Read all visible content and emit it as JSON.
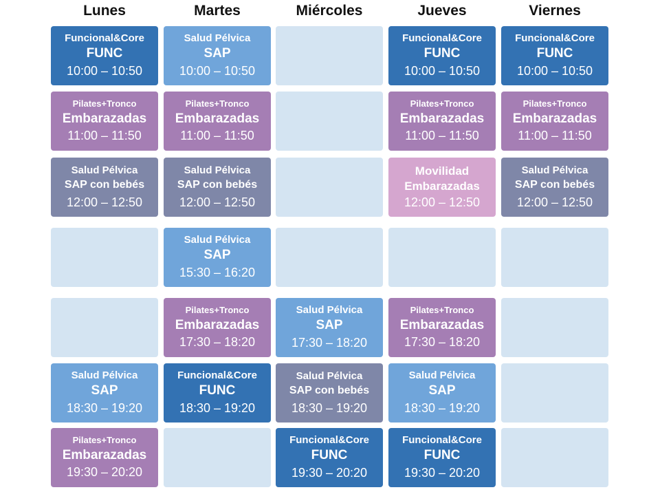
{
  "days": [
    "Lunes",
    "Martes",
    "Miércoles",
    "Jueves",
    "Viernes"
  ],
  "rows": [
    [
      {
        "cat": "Funcional&Core",
        "cls": "FUNC",
        "time": "10:00 – 10:50"
      },
      {
        "cat": "Salud Pélvica",
        "cls": "SAP",
        "time": "10:00 – 10:50"
      },
      null,
      {
        "cat": "Funcional&Core",
        "cls": "FUNC",
        "time": "10:00 – 10:50"
      },
      {
        "cat": "Funcional&Core",
        "cls": "FUNC",
        "time": "10:00 – 10:50"
      }
    ],
    [
      {
        "cat": "Pilates+Tronco",
        "cls": "Embarazadas",
        "time": "11:00 – 11:50"
      },
      {
        "cat": "Pilates+Tronco",
        "cls": "Embarazadas",
        "time": "11:00 – 11:50"
      },
      null,
      {
        "cat": "Pilates+Tronco",
        "cls": "Embarazadas",
        "time": "11:00 – 11:50"
      },
      {
        "cat": "Pilates+Tronco",
        "cls": "Embarazadas",
        "time": "11:00 – 11:50"
      }
    ],
    [
      {
        "cat": "Salud Pélvica",
        "cls": "SAP con bebés",
        "time": "12:00 – 12:50"
      },
      {
        "cat": "Salud Pélvica",
        "cls": "SAP con bebés",
        "time": "12:00 – 12:50"
      },
      null,
      {
        "cat": "Movilidad",
        "cls": "Embarazadas",
        "time": "12:00 – 12:50"
      },
      {
        "cat": "Salud Pélvica",
        "cls": "SAP con bebés",
        "time": "12:00 – 12:50"
      }
    ],
    [
      null,
      {
        "cat": "Salud Pélvica",
        "cls": "SAP",
        "time": "15:30 – 16:20"
      },
      null,
      null,
      null
    ],
    [
      null,
      {
        "cat": "Pilates+Tronco",
        "cls": "Embarazadas",
        "time": "17:30 – 18:20"
      },
      {
        "cat": "Salud Pélvica",
        "cls": "SAP",
        "time": "17:30 – 18:20"
      },
      {
        "cat": "Pilates+Tronco",
        "cls": "Embarazadas",
        "time": "17:30 – 18:20"
      },
      null
    ],
    [
      {
        "cat": "Salud Pélvica",
        "cls": "SAP",
        "time": "18:30 – 19:20"
      },
      {
        "cat": "Funcional&Core",
        "cls": "FUNC",
        "time": "18:30 – 19:20"
      },
      {
        "cat": "Salud Pélvica",
        "cls": "SAP con bebés",
        "time": "18:30 – 19:20"
      },
      {
        "cat": "Salud Pélvica",
        "cls": "SAP",
        "time": "18:30 – 19:20"
      },
      null
    ],
    [
      {
        "cat": "Pilates+Tronco",
        "cls": "Embarazadas",
        "time": "19:30 – 20:20"
      },
      null,
      {
        "cat": "Funcional&Core",
        "cls": "FUNC",
        "time": "19:30 – 20:20"
      },
      {
        "cat": "Funcional&Core",
        "cls": "FUNC",
        "time": "19:30 – 20:20"
      },
      null
    ]
  ],
  "colors": {
    "func": "#3372b3",
    "sap": "#70a5da",
    "embarazadas": "#a57eb4",
    "sap_con_bebes": "#7f87a8",
    "movilidad": "#d5a6cf",
    "empty": "#d4e4f2"
  }
}
